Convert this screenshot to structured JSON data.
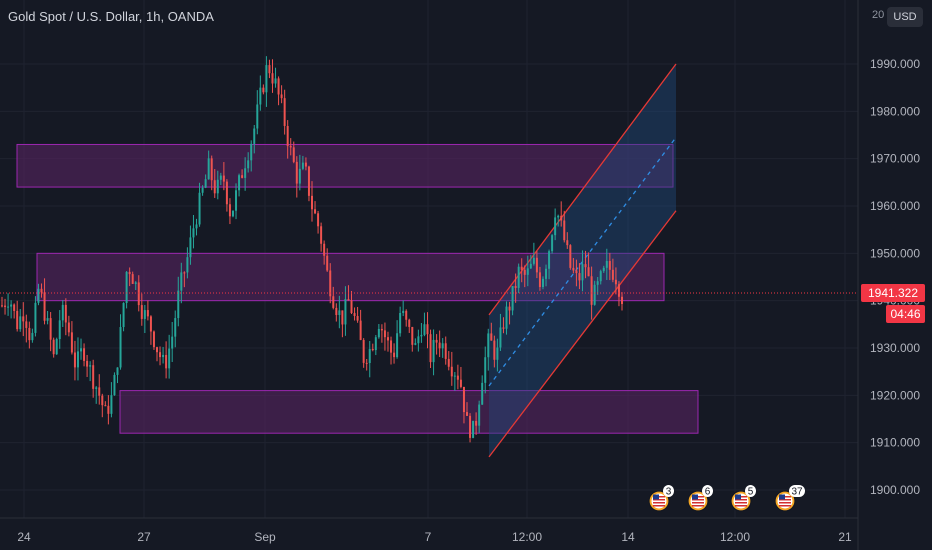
{
  "header": {
    "symbol_title": "Gold Spot / U.S. Dollar, 1h, OANDA",
    "currency": "USD",
    "partial_top_label": "20"
  },
  "colors": {
    "background": "#151924",
    "grid": "#1f2330",
    "up": "#26a69a",
    "down": "#ef5350",
    "zone_fill": "#5c2466",
    "zone_border": "#9c27b0",
    "channel_border": "#e53935",
    "channel_fill": "#1e4a7a",
    "channel_mid": "#2f8de4",
    "price_tag": "#f23645",
    "text": "#b2b5be"
  },
  "icons": [
    "us-flag-event-icon",
    "us-flag-event-icon",
    "us-flag-event-icon",
    "us-flag-event-icon"
  ],
  "chart_data": {
    "type": "candlestick",
    "title": "Gold Spot / U.S. Dollar, 1h, OANDA",
    "y_axis": {
      "side": "right",
      "ticks": [
        "1900.000",
        "1910.000",
        "1920.000",
        "1930.000",
        "1940.000",
        "1950.000",
        "1960.000",
        "1970.000",
        "1980.000",
        "1990.000"
      ],
      "range": [
        1896,
        2010
      ]
    },
    "x_axis": {
      "ticks": [
        "24",
        "27",
        "Sep",
        "7",
        "12:00",
        "14",
        "12:00",
        "21"
      ]
    },
    "last_price": "1941.322",
    "countdown": "04:46",
    "grid": true,
    "approx_price_path": [
      1939,
      1941,
      1935,
      1938,
      1931,
      1943,
      1936,
      1928,
      1938,
      1934,
      1926,
      1930,
      1925,
      1921,
      1916,
      1920,
      1932,
      1948,
      1944,
      1938,
      1935,
      1930,
      1926,
      1932,
      1942,
      1948,
      1956,
      1962,
      1968,
      1963,
      1966,
      1958,
      1964,
      1970,
      1975,
      1983,
      1990,
      1986,
      1980,
      1972,
      1966,
      1968,
      1960,
      1955,
      1946,
      1940,
      1936,
      1940,
      1935,
      1928,
      1930,
      1936,
      1932,
      1928,
      1938,
      1934,
      1930,
      1936,
      1928,
      1932,
      1930,
      1926,
      1924,
      1914,
      1912,
      1924,
      1932,
      1928,
      1936,
      1940,
      1946,
      1945,
      1948,
      1944,
      1950,
      1960,
      1954,
      1947,
      1944,
      1948,
      1940,
      1944,
      1947,
      1946,
      1941
    ],
    "zones": [
      {
        "name": "upper resistance zone",
        "price_top": 1973,
        "price_bottom": 1964
      },
      {
        "name": "middle zone",
        "price_top": 1950,
        "price_bottom": 1940
      },
      {
        "name": "lower support zone",
        "price_top": 1921,
        "price_bottom": 1912
      }
    ],
    "ascending_channel": {
      "upper_from": 1937,
      "upper_to": 1990,
      "lower_from": 1907,
      "lower_to": 1959
    },
    "events": [
      {
        "label": "3"
      },
      {
        "label": "6"
      },
      {
        "label": "5"
      },
      {
        "label": "37"
      }
    ]
  }
}
